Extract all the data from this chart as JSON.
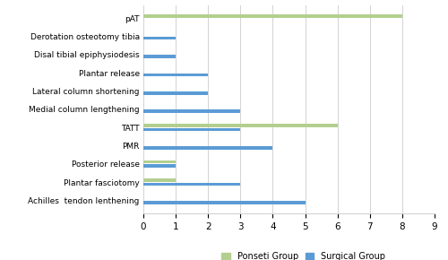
{
  "categories": [
    "Achilles  tendon lenthening",
    "Plantar fasciotomy",
    "Posterior release",
    "PMR",
    "TATT",
    "Medial column lengthening",
    "Lateral column shortening",
    "Plantar release",
    "Disal tibial epiphysiodesis",
    "Derotation osteotomy tibia",
    "pAT"
  ],
  "ponseti_values": [
    0,
    1,
    1,
    0,
    6,
    0,
    0,
    0,
    0,
    0,
    8
  ],
  "surgical_values": [
    5,
    3,
    1,
    4,
    3,
    3,
    2,
    2,
    1,
    1,
    0
  ],
  "ponseti_color": "#b3cf8f",
  "surgical_color": "#5b9bd5",
  "xlim": [
    0,
    9
  ],
  "xticks": [
    0,
    1,
    2,
    3,
    4,
    5,
    6,
    7,
    8,
    9
  ],
  "legend_ponseti": "Ponseti Group",
  "legend_surgical": "Surgical Group",
  "bar_height": 0.18,
  "figsize": [
    5.0,
    2.9
  ],
  "dpi": 100
}
